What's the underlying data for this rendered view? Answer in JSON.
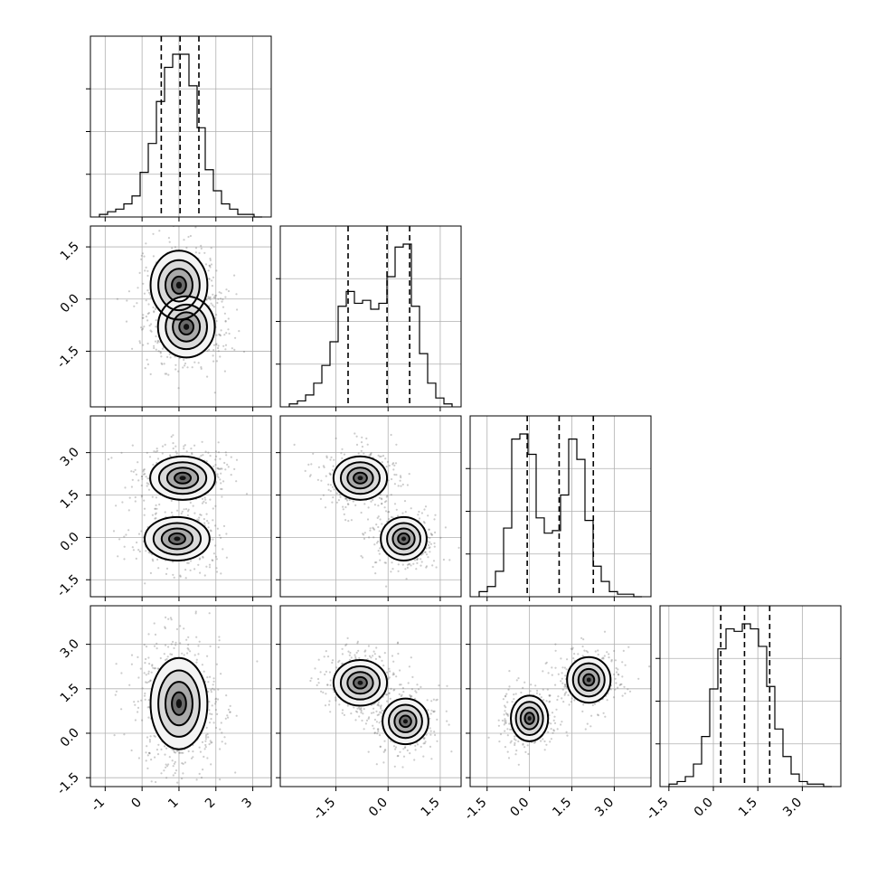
{
  "chart_data": {
    "type": "corner",
    "grid": true,
    "parameters": [
      {
        "center": 1.0,
        "sd": 0.45,
        "quantiles": [
          0.52,
          1.03,
          1.54
        ],
        "range": [
          -1.4,
          3.5
        ],
        "xticks": [
          "-1",
          "0",
          "1",
          "2",
          "3"
        ],
        "xtick_values": [
          -1,
          0,
          1,
          2,
          3
        ],
        "yticks": [],
        "ytick_values": []
      },
      {
        "center": -0.1,
        "sd": 1.0,
        "quantiles": [
          -1.15,
          -0.03,
          0.62
        ],
        "range": [
          -3.1,
          2.1
        ],
        "xticks": [
          "-1.5",
          "0.0",
          "1.5"
        ],
        "xtick_values": [
          -1.5,
          0.0,
          1.5
        ],
        "yticks": [
          "1.5",
          "0.0",
          "-1.5"
        ],
        "ytick_values": [
          1.5,
          0.0,
          -1.5
        ]
      },
      {
        "center": 1.05,
        "sd": 1.2,
        "quantiles": [
          -0.08,
          1.05,
          2.26
        ],
        "range": [
          -2.1,
          4.3
        ],
        "xticks": [
          "-1.5",
          "0.0",
          "1.5",
          "3.0"
        ],
        "xtick_values": [
          -1.5,
          0.0,
          1.5,
          3.0
        ],
        "yticks": [
          "3.0",
          "1.5",
          "0.0",
          "-1.5"
        ],
        "ytick_values": [
          3.0,
          1.5,
          0.0,
          -1.5
        ]
      },
      {
        "center": 1.1,
        "sd": 0.7,
        "quantiles": [
          0.25,
          1.05,
          1.9
        ],
        "range": [
          -1.8,
          4.3
        ],
        "xticks": [
          "-1.5",
          "0.0",
          "1.5",
          "3.0"
        ],
        "xtick_values": [
          -1.5,
          0.0,
          1.5,
          3.0
        ],
        "yticks": [
          "3.0",
          "1.5",
          "0.0",
          "-1.5"
        ],
        "ytick_values": [
          3.0,
          1.5,
          0.0,
          -1.5
        ]
      }
    ],
    "histograms": [
      [
        1,
        2,
        3,
        5,
        8,
        17,
        28,
        44,
        57,
        62,
        62,
        50,
        34,
        18,
        10,
        5,
        3,
        1,
        1,
        0
      ],
      [
        1,
        2,
        4,
        8,
        14,
        22,
        34,
        39,
        35,
        36,
        33,
        35,
        44,
        54,
        55,
        34,
        18,
        8,
        3,
        1
      ],
      [
        2,
        4,
        10,
        27,
        62,
        64,
        56,
        31,
        25,
        26,
        40,
        62,
        54,
        30,
        12,
        6,
        2,
        1,
        1,
        0
      ],
      [
        1,
        2,
        4,
        9,
        20,
        39,
        55,
        63,
        62,
        65,
        63,
        56,
        40,
        23,
        12,
        5,
        2,
        1,
        1,
        0
      ]
    ],
    "histogram_peak": [
      62,
      55,
      64,
      65
    ],
    "joint": [
      {
        "row": 1,
        "col": 0,
        "modes": [
          [
            1.0,
            0.4,
            0.35,
            0.45
          ],
          [
            1.2,
            -0.8,
            0.35,
            0.4
          ]
        ]
      },
      {
        "row": 2,
        "col": 0,
        "modes": [
          [
            1.1,
            2.1,
            0.4,
            0.35
          ],
          [
            0.95,
            -0.05,
            0.4,
            0.35
          ]
        ]
      },
      {
        "row": 2,
        "col": 1,
        "modes": [
          [
            -0.8,
            2.1,
            0.35,
            0.35
          ],
          [
            0.45,
            -0.05,
            0.3,
            0.35
          ]
        ]
      },
      {
        "row": 3,
        "col": 0,
        "modes": [
          [
            1.0,
            1.0,
            0.35,
            0.7
          ]
        ]
      },
      {
        "row": 3,
        "col": 1,
        "modes": [
          [
            -0.8,
            1.7,
            0.35,
            0.35
          ],
          [
            0.5,
            0.4,
            0.3,
            0.35
          ]
        ]
      },
      {
        "row": 3,
        "col": 2,
        "modes": [
          [
            0.0,
            0.5,
            0.3,
            0.35
          ],
          [
            2.1,
            1.8,
            0.35,
            0.35
          ]
        ]
      }
    ]
  }
}
